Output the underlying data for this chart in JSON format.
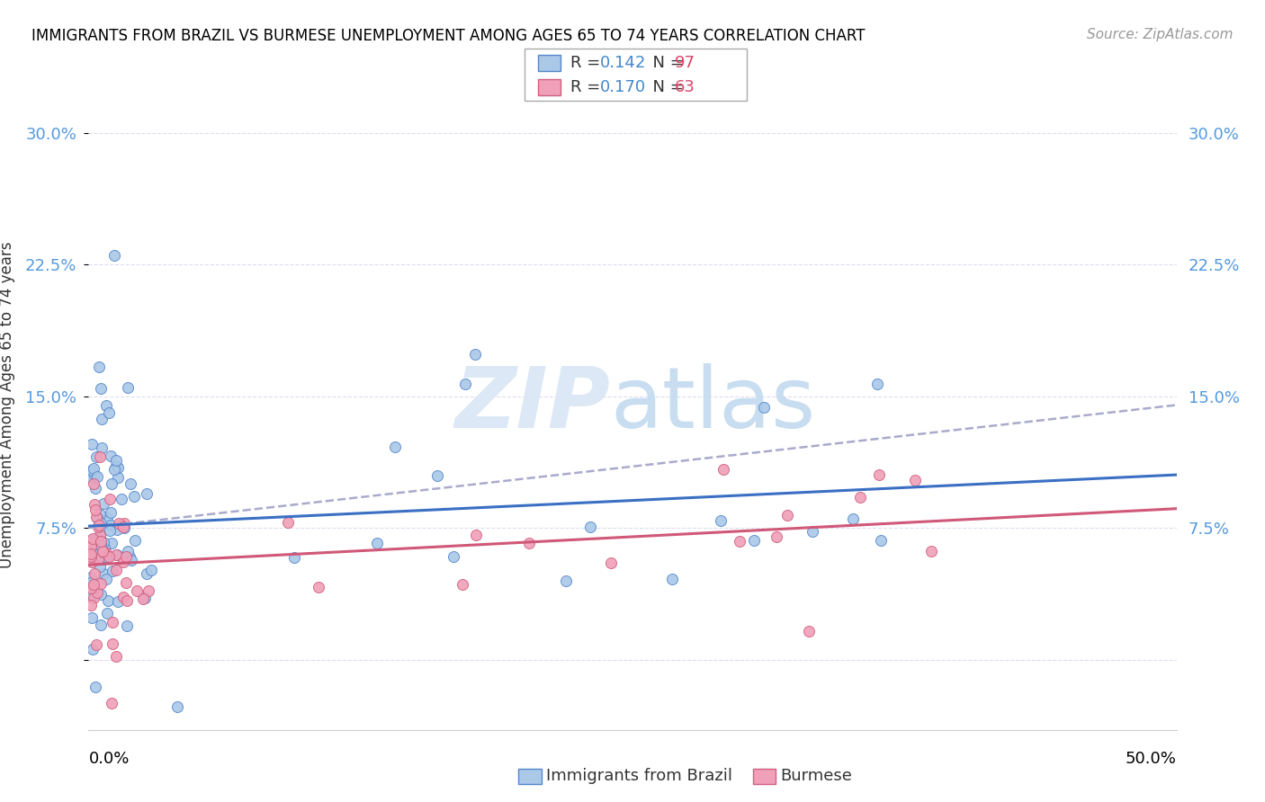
{
  "title": "IMMIGRANTS FROM BRAZIL VS BURMESE UNEMPLOYMENT AMONG AGES 65 TO 74 YEARS CORRELATION CHART",
  "source": "Source: ZipAtlas.com",
  "ylabel": "Unemployment Among Ages 65 to 74 years",
  "xlim": [
    0,
    0.5
  ],
  "ylim": [
    -0.04,
    0.33
  ],
  "yticks": [
    0.0,
    0.075,
    0.15,
    0.225,
    0.3
  ],
  "ytick_labels": [
    "",
    "7.5%",
    "15.0%",
    "22.5%",
    "30.0%"
  ],
  "brazil_color": "#aac8e8",
  "burmese_color": "#f0a0b8",
  "brazil_edge_color": "#5588cc",
  "burmese_edge_color": "#d06080",
  "brazil_line_color": "#3a6fc4",
  "burmese_line_color": "#d05878",
  "dash_line_color": "#aaaacc",
  "tick_color": "#5599dd",
  "watermark_zip_color": "#dce8f5",
  "watermark_atlas_color": "#c8ddf0"
}
